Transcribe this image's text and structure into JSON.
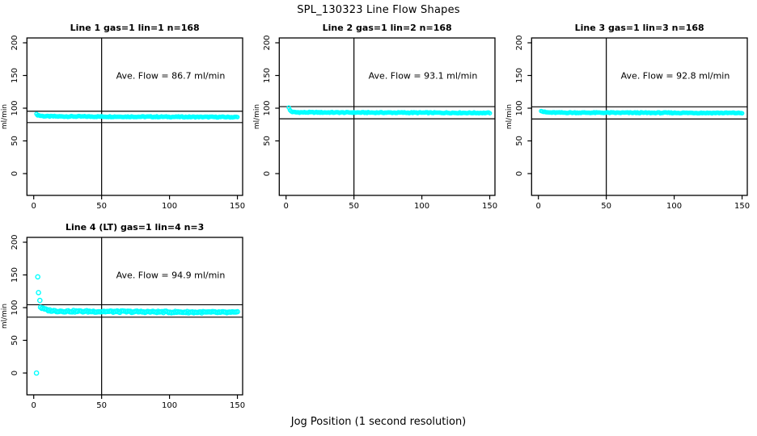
{
  "chart_title": "SPL_130323  Line Flow Shapes",
  "x_axis_label": "Jog Position (1 second resolution)",
  "point_color": "#00FFFF",
  "axis_color": "#000000",
  "chart_data": [
    {
      "type": "scatter",
      "title": "Line 1 gas=1 lin=1 n=168",
      "annotation": "Ave. Flow =  86.7  ml/min",
      "ave_flow_ml_min": 86.7,
      "n": 168,
      "ylabel": "ml/min",
      "x_ticks": [
        0,
        50,
        100,
        150
      ],
      "y_ticks": [
        0,
        50,
        100,
        150,
        200
      ],
      "xlim": [
        -4.5,
        156
      ],
      "ylim": [
        -33,
        208
      ],
      "vline_x": 50,
      "hlines": [
        95.4,
        78.0
      ],
      "band": {
        "x_start": 2,
        "x_end": 150,
        "count": 168,
        "base": 87.6,
        "slope": -0.008,
        "spike_amp": 3,
        "spike_tau": 2.5,
        "jitter": 0.7,
        "marker_r": 2.1
      },
      "outliers": []
    },
    {
      "type": "scatter",
      "title": "Line 2 gas=1 lin=2 n=168",
      "annotation": "Ave. Flow =  93.1  ml/min",
      "ave_flow_ml_min": 93.1,
      "n": 168,
      "ylabel": "ml/min",
      "x_ticks": [
        0,
        50,
        100,
        150
      ],
      "y_ticks": [
        0,
        50,
        100,
        150,
        200
      ],
      "xlim": [
        -4.5,
        156
      ],
      "ylim": [
        -33,
        208
      ],
      "vline_x": 50,
      "hlines": [
        102.4,
        83.8
      ],
      "band": {
        "x_start": 2,
        "x_end": 150,
        "count": 168,
        "base": 93.7,
        "slope": -0.006,
        "spike_amp": 7,
        "spike_tau": 1.2,
        "jitter": 0.7,
        "marker_r": 2.1
      },
      "outliers": []
    },
    {
      "type": "scatter",
      "title": "Line 3 gas=1 lin=3 n=168",
      "annotation": "Ave. Flow =  92.8  ml/min",
      "ave_flow_ml_min": 92.8,
      "n": 168,
      "ylabel": "ml/min",
      "x_ticks": [
        0,
        50,
        100,
        150
      ],
      "y_ticks": [
        0,
        50,
        100,
        150,
        200
      ],
      "xlim": [
        -4.5,
        156
      ],
      "ylim": [
        -33,
        208
      ],
      "vline_x": 50,
      "hlines": [
        102.1,
        83.5
      ],
      "band": {
        "x_start": 2,
        "x_end": 150,
        "count": 168,
        "base": 93.3,
        "slope": -0.004,
        "spike_amp": 3,
        "spike_tau": 2.0,
        "jitter": 0.7,
        "marker_r": 2.1
      },
      "outliers": []
    },
    {
      "type": "scatter",
      "title": "Line 4 (LT) gas=1 lin=4 n=3",
      "annotation": "Ave. Flow =  94.9  ml/min",
      "ave_flow_ml_min": 94.9,
      "n": 3,
      "ylabel": "ml/min",
      "x_ticks": [
        0,
        50,
        100,
        150
      ],
      "y_ticks": [
        0,
        50,
        100,
        150,
        200
      ],
      "xlim": [
        -4.5,
        156
      ],
      "ylim": [
        -33,
        208
      ],
      "vline_x": 50,
      "hlines": [
        104.4,
        85.4
      ],
      "band": {
        "x_start": 5,
        "x_end": 150,
        "count": 150,
        "base": 94.8,
        "slope": -0.015,
        "spike_amp": 6,
        "spike_tau": 4.0,
        "jitter": 1.2,
        "marker_r": 2.6
      },
      "outliers": [
        [
          2,
          0
        ],
        [
          3,
          147
        ],
        [
          3.5,
          123
        ],
        [
          4.5,
          111
        ]
      ]
    }
  ]
}
